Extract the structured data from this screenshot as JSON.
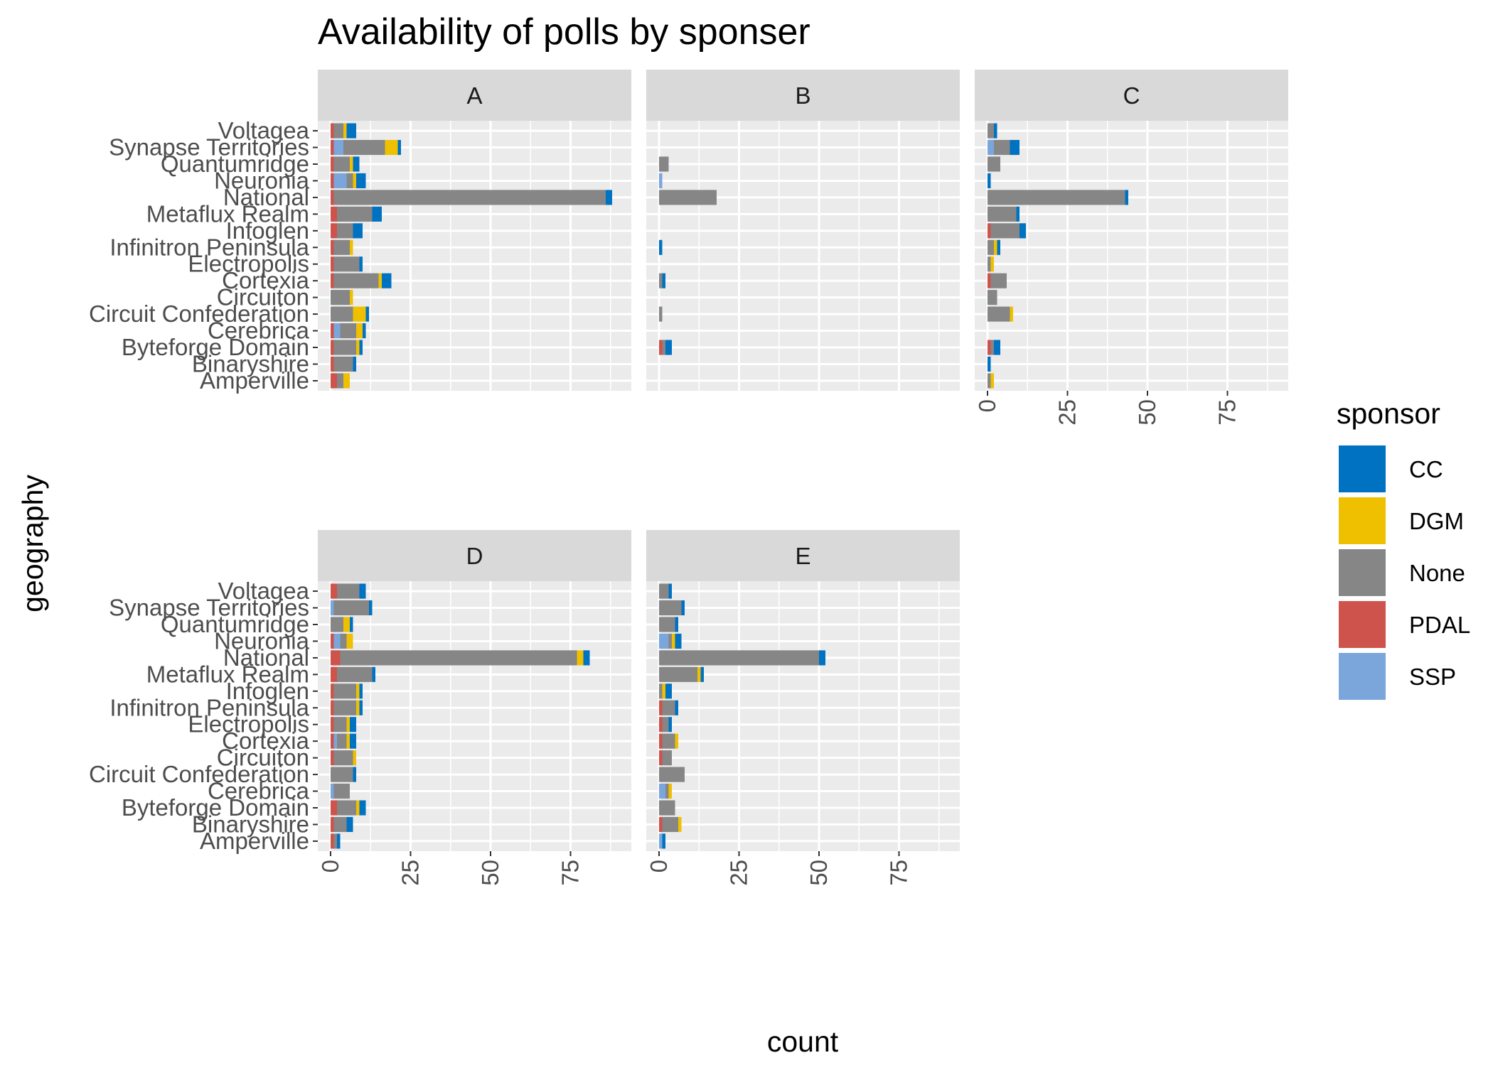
{
  "chart_data": {
    "type": "bar",
    "orientation": "horizontal",
    "stacked": true,
    "title": "Availability of polls by sponser",
    "xlabel": "count",
    "ylabel": "geography",
    "xlim": [
      0,
      90
    ],
    "xticks": [
      "0",
      "25",
      "50",
      "75"
    ],
    "grid": true,
    "legend": {
      "title": "sponsor",
      "position": "right"
    },
    "stack_order": [
      "PDAL",
      "SSP",
      "None",
      "DGM",
      "CC"
    ],
    "sponsors": [
      {
        "name": "CC",
        "color": "#0072C2"
      },
      {
        "name": "DGM",
        "color": "#EFC000"
      },
      {
        "name": "None",
        "color": "#868686"
      },
      {
        "name": "PDAL",
        "color": "#CD534C"
      },
      {
        "name": "SSP",
        "color": "#7AA6DC"
      }
    ],
    "categories": [
      "Voltagea",
      "Synapse Territories",
      "Quantumridge",
      "Neuronia",
      "National",
      "Metaflux Realm",
      "Infoglen",
      "Infinitron Peninsula",
      "Electropolis",
      "Cortexia",
      "Circuiton",
      "Circuit Confederation",
      "Cerebrica",
      "Byteforge Domain",
      "Binaryshire",
      "Amperville"
    ],
    "facets": [
      {
        "label": "A",
        "series": [
          {
            "name": "PDAL",
            "values": [
              1,
              1,
              1,
              1,
              1,
              2,
              2,
              1,
              1,
              1,
              0,
              0,
              1,
              1,
              1,
              2
            ]
          },
          {
            "name": "SSP",
            "values": [
              0,
              3,
              0,
              4,
              0,
              0,
              0,
              0,
              0,
              0,
              0,
              0,
              2,
              0,
              0,
              0
            ]
          },
          {
            "name": "None",
            "values": [
              3,
              13,
              5,
              2,
              85,
              11,
              5,
              5,
              8,
              14,
              6,
              7,
              5,
              7,
              6,
              2
            ]
          },
          {
            "name": "DGM",
            "values": [
              1,
              4,
              1,
              1,
              0,
              0,
              0,
              1,
              0,
              1,
              1,
              4,
              2,
              1,
              0,
              2
            ]
          },
          {
            "name": "CC",
            "values": [
              3,
              1,
              2,
              3,
              2,
              3,
              3,
              0,
              1,
              3,
              0,
              1,
              1,
              1,
              1,
              0
            ]
          }
        ]
      },
      {
        "label": "B",
        "series": [
          {
            "name": "PDAL",
            "values": [
              0,
              0,
              0,
              0,
              0,
              0,
              0,
              0,
              0,
              0,
              0,
              0,
              0,
              1,
              0,
              0
            ]
          },
          {
            "name": "SSP",
            "values": [
              0,
              0,
              0,
              1,
              0,
              0,
              0,
              0,
              0,
              0,
              0,
              0,
              0,
              0,
              0,
              0
            ]
          },
          {
            "name": "None",
            "values": [
              0,
              0,
              3,
              0,
              18,
              0,
              0,
              0,
              0,
              1,
              0,
              1,
              0,
              1,
              0,
              0
            ]
          },
          {
            "name": "DGM",
            "values": [
              0,
              0,
              0,
              0,
              0,
              0,
              0,
              0,
              0,
              0,
              0,
              0,
              0,
              0,
              0,
              0
            ]
          },
          {
            "name": "CC",
            "values": [
              0,
              0,
              0,
              0,
              0,
              0,
              0,
              1,
              0,
              1,
              0,
              0,
              0,
              2,
              0,
              0
            ]
          }
        ]
      },
      {
        "label": "C",
        "series": [
          {
            "name": "PDAL",
            "values": [
              0,
              0,
              0,
              0,
              0,
              0,
              1,
              0,
              0,
              1,
              0,
              0,
              0,
              1,
              0,
              0
            ]
          },
          {
            "name": "SSP",
            "values": [
              0,
              2,
              0,
              0,
              0,
              0,
              0,
              0,
              0,
              0,
              0,
              0,
              0,
              0,
              0,
              0
            ]
          },
          {
            "name": "None",
            "values": [
              2,
              5,
              4,
              0,
              43,
              9,
              9,
              2,
              1,
              5,
              3,
              7,
              0,
              1,
              0,
              1
            ]
          },
          {
            "name": "DGM",
            "values": [
              0,
              0,
              0,
              0,
              0,
              0,
              0,
              1,
              1,
              0,
              0,
              1,
              0,
              0,
              0,
              1
            ]
          },
          {
            "name": "CC",
            "values": [
              1,
              3,
              0,
              1,
              1,
              1,
              2,
              1,
              0,
              0,
              0,
              0,
              0,
              2,
              1,
              0
            ]
          }
        ]
      },
      {
        "label": "D",
        "series": [
          {
            "name": "PDAL",
            "values": [
              2,
              0,
              0,
              1,
              3,
              2,
              1,
              1,
              1,
              1,
              1,
              0,
              0,
              2,
              1,
              1
            ]
          },
          {
            "name": "SSP",
            "values": [
              0,
              1,
              0,
              2,
              0,
              0,
              0,
              0,
              0,
              1,
              0,
              0,
              1,
              0,
              0,
              0
            ]
          },
          {
            "name": "None",
            "values": [
              7,
              11,
              4,
              2,
              74,
              11,
              7,
              7,
              4,
              3,
              6,
              7,
              5,
              6,
              4,
              1
            ]
          },
          {
            "name": "DGM",
            "values": [
              0,
              0,
              2,
              2,
              2,
              0,
              1,
              1,
              1,
              1,
              1,
              0,
              0,
              1,
              0,
              0
            ]
          },
          {
            "name": "CC",
            "values": [
              2,
              1,
              1,
              0,
              2,
              1,
              1,
              1,
              2,
              2,
              0,
              1,
              0,
              2,
              2,
              1
            ]
          }
        ]
      },
      {
        "label": "E",
        "series": [
          {
            "name": "PDAL",
            "values": [
              0,
              0,
              0,
              0,
              0,
              0,
              0,
              1,
              1,
              1,
              1,
              0,
              0,
              0,
              1,
              0
            ]
          },
          {
            "name": "SSP",
            "values": [
              0,
              0,
              0,
              3,
              0,
              0,
              0,
              0,
              0,
              0,
              0,
              0,
              2,
              0,
              0,
              1
            ]
          },
          {
            "name": "None",
            "values": [
              3,
              7,
              5,
              1,
              50,
              12,
              1,
              4,
              2,
              4,
              3,
              8,
              1,
              5,
              5,
              0
            ]
          },
          {
            "name": "DGM",
            "values": [
              0,
              0,
              0,
              1,
              0,
              1,
              1,
              0,
              0,
              1,
              0,
              0,
              1,
              0,
              1,
              0
            ]
          },
          {
            "name": "CC",
            "values": [
              1,
              1,
              1,
              2,
              2,
              1,
              2,
              1,
              1,
              0,
              0,
              0,
              0,
              0,
              0,
              1
            ]
          }
        ]
      }
    ]
  }
}
